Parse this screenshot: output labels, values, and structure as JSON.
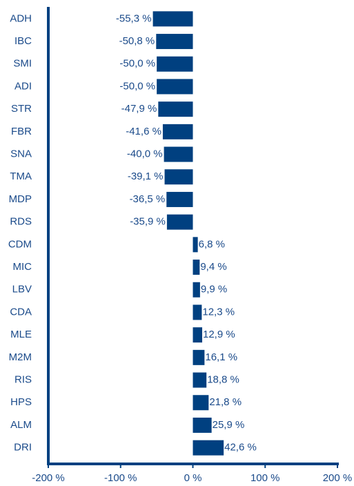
{
  "chart_data": {
    "type": "hbar",
    "categories": [
      "ADH",
      "IBC",
      "SMI",
      "ADI",
      "STR",
      "FBR",
      "SNA",
      "TMA",
      "MDP",
      "RDS",
      "CDM",
      "MIC",
      "LBV",
      "CDA",
      "MLE",
      "M2M",
      "RIS",
      "HPS",
      "ALM",
      "DRI"
    ],
    "values": [
      -55.3,
      -50.8,
      -50.0,
      -50.0,
      -47.9,
      -41.6,
      -40.0,
      -39.1,
      -36.5,
      -35.9,
      6.8,
      9.4,
      9.9,
      12.3,
      12.9,
      16.1,
      18.8,
      21.8,
      25.9,
      42.6
    ],
    "value_labels": [
      "-55,3 %",
      "-50,8 %",
      "-50,0 %",
      "-50,0 %",
      "-47,9 %",
      "-41,6 %",
      "-40,0 %",
      "-39,1 %",
      "-36,5 %",
      "-35,9 %",
      "6,8 %",
      "9,4 %",
      "9,9 %",
      "12,3 %",
      "12,9 %",
      "16,1 %",
      "18,8 %",
      "21,8 %",
      "25,9 %",
      "42,6 %"
    ],
    "color": "#004080",
    "xlim": [
      -200,
      200
    ],
    "xticks": [
      {
        "value": -200,
        "label": "-200 %"
      },
      {
        "value": -100,
        "label": "-100 %"
      },
      {
        "value": 0,
        "label": "0 %"
      },
      {
        "value": 100,
        "label": "100 %"
      },
      {
        "value": 200,
        "label": "200 %"
      }
    ]
  }
}
